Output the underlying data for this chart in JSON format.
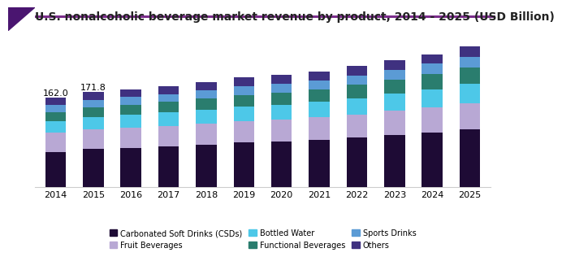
{
  "title": "U.S. nonalcoholic beverage market revenue by product, 2014 - 2025 (USD Billion)",
  "years": [
    2014,
    2015,
    2016,
    2017,
    2018,
    2019,
    2020,
    2021,
    2022,
    2023,
    2024,
    2025
  ],
  "annotation_2014": "162.0",
  "annotation_2015": "171.8",
  "stack_order": [
    "Carbonated Soft Drinks (CSDs)",
    "Fruit Beverages",
    "Bottled Water",
    "Functional Beverages",
    "Sports Drinks",
    "Others"
  ],
  "segments": {
    "Carbonated Soft Drinks (CSDs)": {
      "color": "#1e0b35",
      "values": [
        64,
        69,
        71,
        74,
        77,
        81,
        83,
        86,
        90,
        95,
        99,
        104
      ]
    },
    "Fruit Beverages": {
      "color": "#b8a8d4",
      "values": [
        35,
        36,
        37,
        37,
        38,
        39,
        39,
        40,
        41,
        43,
        45,
        47
      ]
    },
    "Bottled Water": {
      "color": "#4dc8e8",
      "values": [
        21,
        22,
        23,
        24,
        25,
        26,
        27,
        28,
        30,
        31,
        33,
        36
      ]
    },
    "Functional Beverages": {
      "color": "#2a7d6e",
      "values": [
        16,
        17,
        18,
        19,
        20,
        21,
        22,
        23,
        24,
        25,
        27,
        29
      ]
    },
    "Sports Drinks": {
      "color": "#5b9bd5",
      "values": [
        13,
        14,
        14,
        14,
        15,
        15,
        16,
        16,
        17,
        18,
        19,
        20
      ]
    },
    "Others": {
      "color": "#3f3180",
      "values": [
        13,
        13.8,
        14,
        15,
        15,
        16,
        16,
        16,
        17,
        17,
        17,
        18
      ]
    }
  },
  "legend_row1": [
    "Carbonated Soft Drinks (CSDs)",
    "Fruit Beverages",
    "Bottled Water"
  ],
  "legend_row2": [
    "Functional Beverages",
    "Sports Drinks",
    "Others"
  ],
  "background_color": "#ffffff",
  "title_fontsize": 10,
  "bar_width": 0.55,
  "ylim": [
    0,
    260
  ],
  "accent_bar_color": "#7b2d8b",
  "accent_triangle_color": "#4a1570"
}
